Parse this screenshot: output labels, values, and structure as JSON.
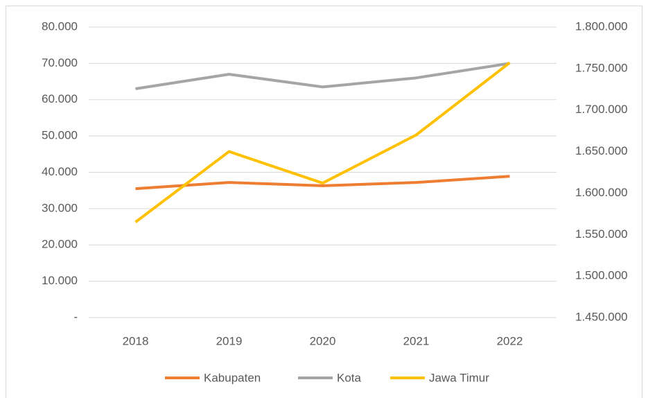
{
  "chart_data": {
    "type": "line",
    "categories": [
      "2018",
      "2019",
      "2020",
      "2021",
      "2022"
    ],
    "series": [
      {
        "name": "Kabupaten",
        "color": "#ED7D31",
        "values": [
          35500,
          37200,
          36300,
          37200,
          38900
        ]
      },
      {
        "name": "Kota",
        "color": "#A5A5A5",
        "values": [
          63000,
          67000,
          63500,
          66000,
          70000
        ]
      },
      {
        "name": "Jawa Timur",
        "color": "#FFC000",
        "axis": "y2",
        "values": [
          1565000,
          1650000,
          1612000,
          1670000,
          1757000
        ]
      }
    ],
    "ylim": [
      0,
      80000
    ],
    "yticks": [
      {
        "value": 0,
        "label": "-"
      },
      {
        "value": 10000,
        "label": "10.000"
      },
      {
        "value": 20000,
        "label": "20.000"
      },
      {
        "value": 30000,
        "label": "30.000"
      },
      {
        "value": 40000,
        "label": "40.000"
      },
      {
        "value": 50000,
        "label": "50.000"
      },
      {
        "value": 60000,
        "label": "60.000"
      },
      {
        "value": 70000,
        "label": "70.000"
      },
      {
        "value": 80000,
        "label": "80.000"
      }
    ],
    "y2lim": [
      1450000,
      1800000
    ],
    "y2ticks": [
      {
        "value": 1450000,
        "label": "1.450.000"
      },
      {
        "value": 1500000,
        "label": "1.500.000"
      },
      {
        "value": 1550000,
        "label": "1.550.000"
      },
      {
        "value": 1600000,
        "label": "1.600.000"
      },
      {
        "value": 1650000,
        "label": "1.650.000"
      },
      {
        "value": 1700000,
        "label": "1.700.000"
      },
      {
        "value": 1750000,
        "label": "1.750.000"
      },
      {
        "value": 1800000,
        "label": "1.800.000"
      }
    ],
    "grid": true,
    "legend": "bottom"
  }
}
